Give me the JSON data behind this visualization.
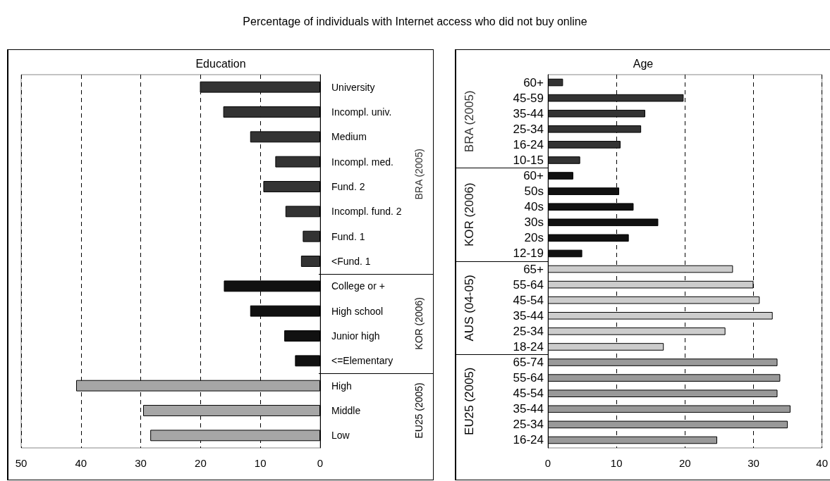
{
  "chart_data": [
    {
      "type": "bar",
      "title": "Percentage of individuals with Internet access who did not buy online",
      "subtitle": "Education",
      "orientation": "horizontal",
      "categories": [
        "University",
        "Incompl. univ.",
        "Medium",
        "Incompl. med.",
        "Fund. 2",
        "Incompl. fund. 2",
        "Fund. 1",
        "<Fund. 1",
        "College or +",
        "High school",
        "Junior high",
        "<=Elementary",
        "High",
        "Middle",
        "Low"
      ],
      "series": [
        {
          "name": "BRA (2005)",
          "color": "#333333",
          "values": [
            20.1,
            16.2,
            11.7,
            7.5,
            9.5,
            5.8,
            2.9,
            3.2,
            null,
            null,
            null,
            null,
            null,
            null,
            null
          ]
        },
        {
          "name": "KOR (2006)",
          "color": "#111111",
          "values": [
            null,
            null,
            null,
            null,
            null,
            null,
            null,
            null,
            16.1,
            11.7,
            6.0,
            4.2,
            null,
            null,
            null
          ]
        },
        {
          "name": "EU25 (2005)",
          "color": "#a6a6a6",
          "values": [
            null,
            null,
            null,
            null,
            null,
            null,
            null,
            null,
            null,
            null,
            null,
            null,
            40.8,
            29.6,
            28.4
          ]
        }
      ],
      "xlim": [
        50,
        0
      ],
      "xticks": [
        50,
        40,
        30,
        20,
        10,
        0
      ],
      "grid": "x",
      "legend": false
    },
    {
      "type": "bar",
      "subtitle": "Age",
      "orientation": "horizontal",
      "categories": [
        "60+",
        "45-59",
        "35-44",
        "25-34",
        "16-24",
        "10-15",
        "60+",
        "50s",
        "40s",
        "30s",
        "20s",
        "12-19",
        "65+",
        "55-64",
        "45-54",
        "35-44",
        "25-34",
        "18-24",
        "65-74",
        "55-64",
        "45-54",
        "35-44",
        "25-34",
        "16-24"
      ],
      "series": [
        {
          "name": "BRA (2005)",
          "color": "#333333",
          "values": [
            2.2,
            19.8,
            14.2,
            13.6,
            10.6,
            4.7,
            null,
            null,
            null,
            null,
            null,
            null,
            null,
            null,
            null,
            null,
            null,
            null,
            null,
            null,
            null,
            null,
            null,
            null
          ]
        },
        {
          "name": "KOR (2006)",
          "color": "#111111",
          "values": [
            null,
            null,
            null,
            null,
            null,
            null,
            3.7,
            10.4,
            12.5,
            16.1,
            11.8,
            5.0,
            null,
            null,
            null,
            null,
            null,
            null,
            null,
            null,
            null,
            null,
            null,
            null
          ]
        },
        {
          "name": "AUS (04-05)",
          "color": "#cccccc",
          "values": [
            null,
            null,
            null,
            null,
            null,
            null,
            null,
            null,
            null,
            null,
            null,
            null,
            27.0,
            30.0,
            30.9,
            32.8,
            25.9,
            16.9,
            null,
            null,
            null,
            null,
            null,
            null
          ]
        },
        {
          "name": "EU25 (2005)",
          "color": "#999999",
          "values": [
            null,
            null,
            null,
            null,
            null,
            null,
            null,
            null,
            null,
            null,
            null,
            null,
            null,
            null,
            null,
            null,
            null,
            null,
            33.5,
            33.9,
            33.5,
            35.4,
            35.0,
            24.7
          ]
        }
      ],
      "xlim": [
        0,
        40
      ],
      "xticks": [
        0,
        10,
        20,
        30,
        40
      ],
      "grid": "x",
      "legend": false
    }
  ]
}
